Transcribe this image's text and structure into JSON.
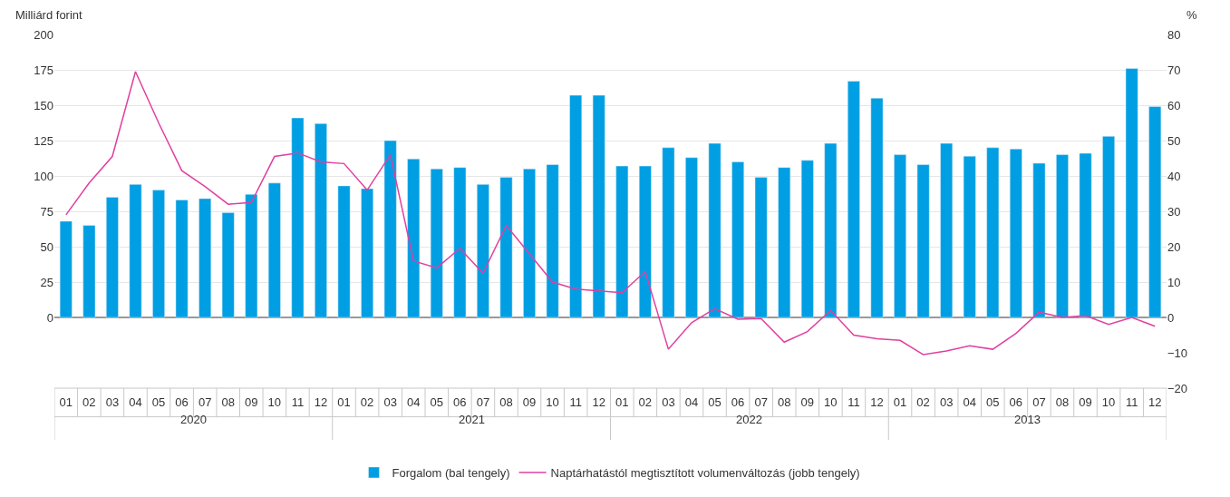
{
  "chart_data": {
    "type": "bar",
    "ylabel": "Milliárd forint",
    "y2label": "%",
    "categories": [
      "01",
      "02",
      "03",
      "04",
      "05",
      "06",
      "07",
      "08",
      "09",
      "10",
      "11",
      "12",
      "01",
      "02",
      "03",
      "04",
      "05",
      "06",
      "07",
      "08",
      "09",
      "10",
      "11",
      "12",
      "01",
      "02",
      "03",
      "04",
      "05",
      "06",
      "07",
      "08",
      "09",
      "10",
      "11",
      "12",
      "01",
      "02",
      "03",
      "04",
      "05",
      "06",
      "07",
      "08",
      "09",
      "10",
      "11",
      "12"
    ],
    "annotations": [
      "2020",
      "2021",
      "2022",
      "2013"
    ],
    "series": [
      {
        "name": "Forgalom (bal tengely)",
        "color": "#009fe3",
        "values": [
          68,
          65,
          85,
          94,
          90,
          83,
          84,
          74,
          87,
          95,
          141,
          137,
          93,
          91,
          125,
          112,
          105,
          106,
          94,
          99,
          105,
          108,
          157,
          157,
          107,
          107,
          120,
          113,
          123,
          110,
          99,
          106,
          111,
          123,
          167,
          155,
          115,
          108,
          123,
          114,
          120,
          119,
          109,
          115,
          116,
          128,
          176,
          149
        ]
      },
      {
        "name": "Naptárhatástól megtisztított volumenváltozás (jobb tengely)",
        "type": "line",
        "axis": "y2",
        "color": "#e040a0",
        "values": [
          29,
          38,
          45.5,
          69.5,
          55,
          41.5,
          37,
          32,
          32.5,
          45.5,
          46.5,
          44,
          43.5,
          36,
          46,
          16,
          14,
          19.5,
          12.5,
          26,
          18,
          10,
          8,
          7.5,
          7,
          13,
          -9,
          -1.5,
          2.5,
          -0.5,
          -0.3,
          -7,
          -4,
          2,
          -5,
          -6,
          -6.5,
          -10.5,
          -9.5,
          -8,
          -9,
          -4.5,
          1.5,
          0,
          0.5,
          -2,
          0,
          -2.5
        ]
      }
    ],
    "ylim": [
      -50,
      200
    ],
    "yticks": [
      {
        "value": -50,
        "label": null
      },
      0,
      25,
      50,
      75,
      100,
      125,
      150,
      175,
      200
    ],
    "y2lim": [
      -20,
      80
    ],
    "y2ticks": [
      -20,
      -10,
      0,
      10,
      20,
      30,
      40,
      50,
      60,
      70,
      80
    ],
    "grid": "y",
    "legend": "bottom",
    "marker": "none",
    "line_style": "solid"
  }
}
